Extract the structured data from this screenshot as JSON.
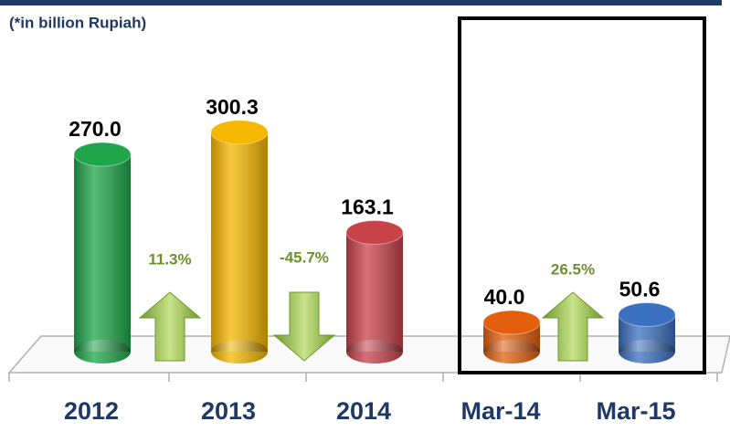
{
  "chart_data": {
    "type": "bar",
    "subtitle": "(*in billion Rupiah)",
    "categories": [
      "2012",
      "2013",
      "2014",
      "Mar-14",
      "Mar-15"
    ],
    "values": [
      270.0,
      300.3,
      163.1,
      40.0,
      50.6
    ],
    "value_labels": [
      "270.0",
      "300.3",
      "163.1",
      "40.0",
      "50.6"
    ],
    "colors": [
      "#1fa64a",
      "#f5b700",
      "#c8424a",
      "#e35f0e",
      "#3c70c0"
    ],
    "ylim": [
      0,
      330
    ],
    "annotations": [
      {
        "text": "11.3%",
        "direction": "up"
      },
      {
        "text": "-45.7%",
        "direction": "down"
      },
      {
        "text": "26.5%",
        "direction": "up"
      }
    ]
  }
}
